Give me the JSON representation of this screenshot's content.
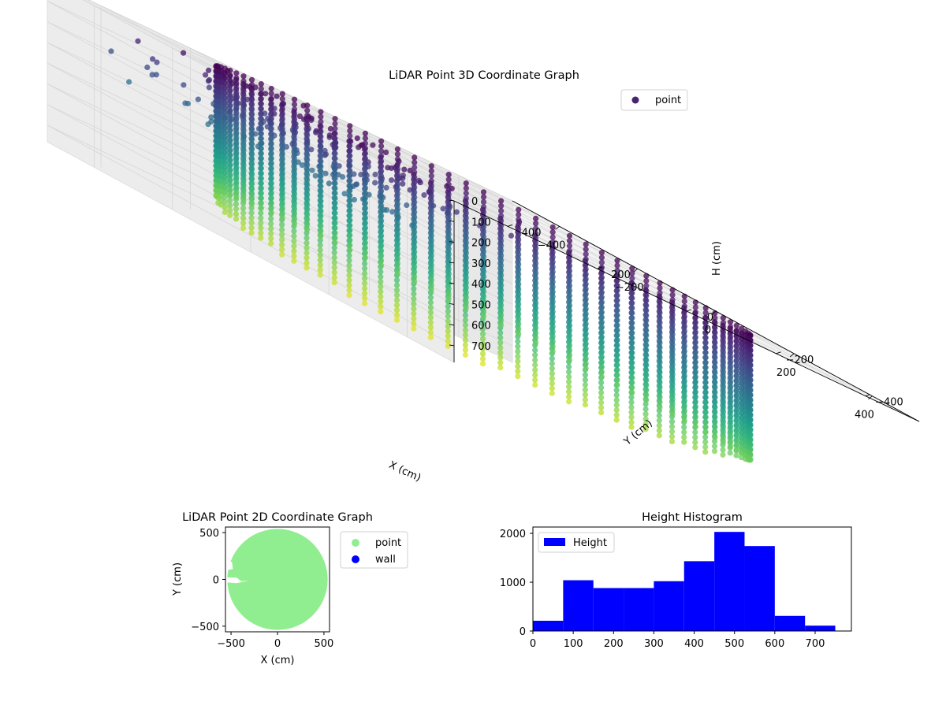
{
  "chart_data": [
    {
      "type": "scatter3d",
      "title": "LiDAR Point 3D Coordinate Graph",
      "xlabel": "X (cm)",
      "ylabel": "Y (cm)",
      "zlabel": "H (cm)",
      "xticks": [
        "−400",
        "−200",
        "0",
        "200",
        "400"
      ],
      "yticks": [
        "400",
        "200",
        "0",
        "−200",
        "−400"
      ],
      "zticks": [
        "0",
        "100",
        "200",
        "300",
        "400",
        "500",
        "600",
        "700"
      ],
      "xlim": [
        -520,
        520
      ],
      "ylim": [
        -520,
        520
      ],
      "zlim": [
        0,
        780
      ],
      "z_inverted": true,
      "colormap": "viridis",
      "legend": {
        "entries": [
          "point"
        ],
        "placement": "top-right"
      },
      "series": [
        {
          "name": "point",
          "shape": "cylindrical wall",
          "radius": 450,
          "z_range": [
            0,
            750
          ],
          "clutter": "cluster of points near the top on the far side, between X −450 and 100, Y 0 to 450, H 0 to 300"
        }
      ],
      "grid": true
    },
    {
      "type": "scatter",
      "title": "LiDAR Point 2D Coordinate Graph",
      "xlabel": "X (cm)",
      "ylabel": "Y (cm)",
      "xticks": [
        "−500",
        "0",
        "500"
      ],
      "yticks": [
        "500",
        "0",
        "−500"
      ],
      "xlim": [
        -560,
        560
      ],
      "ylim": [
        -560,
        560
      ],
      "legend": {
        "entries": [
          "point",
          "wall"
        ],
        "placement": "outside right"
      },
      "series": [
        {
          "name": "point",
          "color": "#90ee90",
          "shape": "filled disk",
          "radius": 540,
          "gaps_near": [
            [
              -520,
              150
            ],
            [
              -480,
              0
            ]
          ]
        },
        {
          "name": "wall",
          "color": "#0000ff",
          "points": []
        }
      ]
    },
    {
      "type": "bar",
      "title": "Height Histogram",
      "xticks": [
        "0",
        "100",
        "200",
        "300",
        "400",
        "500",
        "600",
        "700"
      ],
      "yticks": [
        "0",
        "1000",
        "2000"
      ],
      "xlim": [
        0,
        790
      ],
      "ylim": [
        0,
        2130
      ],
      "color": "#0000ff",
      "legend": {
        "entries": [
          "Height"
        ],
        "placement": "upper left"
      },
      "bin_edges": [
        0,
        75,
        150,
        225,
        300,
        375,
        450,
        525,
        600,
        675,
        750
      ],
      "series": [
        {
          "name": "Height",
          "values": [
            210,
            1040,
            880,
            880,
            1020,
            1430,
            2030,
            1740,
            310,
            110
          ]
        }
      ]
    }
  ]
}
